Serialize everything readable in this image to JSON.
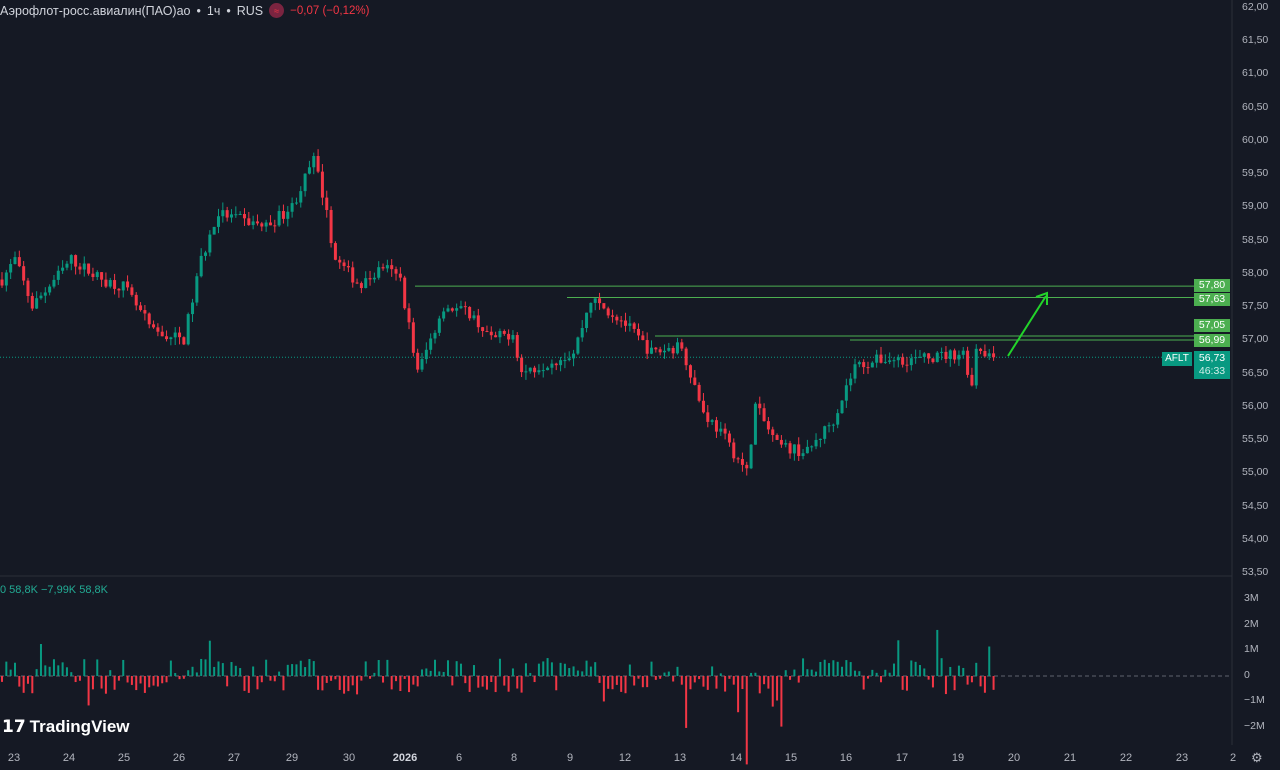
{
  "header": {
    "symbol": "Аэрофлот-росс.авиалин(ПАО)ао",
    "interval": "1ч",
    "exchange": "RUS",
    "change": "−0,07 (−0,12%)",
    "badge_icon": "currency-icon",
    "separator": "•"
  },
  "volume_legend": "0 58,8K −7,99K 58,8K",
  "logo": "TradingView",
  "price_axis": [
    "62,00",
    "61,50",
    "61,00",
    "60,50",
    "60,00",
    "59,50",
    "59,00",
    "58,50",
    "58,00",
    "57,50",
    "57,00",
    "56,50",
    "56,00",
    "55,50",
    "55,00",
    "54,50",
    "54,00",
    "53,50"
  ],
  "volume_axis": [
    "3M",
    "2M",
    "1M",
    "0",
    "−1M",
    "−2M"
  ],
  "time_axis": [
    "23",
    "24",
    "25",
    "26",
    "27",
    "29",
    "30",
    "2026",
    "6",
    "8",
    "9",
    "12",
    "13",
    "14",
    "15",
    "16",
    "17",
    "19",
    "20",
    "21",
    "22",
    "23",
    "2"
  ],
  "levels": [
    {
      "label": "57,80",
      "value": 57.8
    },
    {
      "label": "57,63",
      "value": 57.63
    },
    {
      "label": "57,05",
      "value": 57.05
    },
    {
      "label": "56,99",
      "value": 56.99
    }
  ],
  "current": {
    "ticker": "AFLT",
    "price": "56,73",
    "value": 56.73,
    "countdown": "46:33"
  },
  "colors": {
    "up": "#089981",
    "down": "#f23645",
    "level": "#4caf50",
    "arrow": "#22d42a",
    "bg": "#151924"
  },
  "chart_data": {
    "type": "candlestick",
    "title": "Аэрофлот-росс.авиалин(ПАО)ао · 1ч · RUS",
    "ylim": [
      53.5,
      62.0
    ],
    "volume_ylim": [
      -2.5,
      3.5
    ],
    "approx_close_path": [
      [
        0,
        57.9
      ],
      [
        3,
        58.2
      ],
      [
        7,
        57.5
      ],
      [
        16,
        58.2
      ],
      [
        23,
        57.9
      ],
      [
        28,
        57.8
      ],
      [
        35,
        57.1
      ],
      [
        42,
        57.0
      ],
      [
        46,
        58.2
      ],
      [
        50,
        58.9
      ],
      [
        55,
        58.8
      ],
      [
        61,
        58.7
      ],
      [
        67,
        59.0
      ],
      [
        72,
        59.7
      ],
      [
        74,
        59.2
      ],
      [
        77,
        58.2
      ],
      [
        83,
        57.8
      ],
      [
        88,
        58.1
      ],
      [
        92,
        57.9
      ],
      [
        94,
        57.2
      ],
      [
        96,
        56.5
      ],
      [
        102,
        57.5
      ],
      [
        108,
        57.4
      ],
      [
        113,
        57.0
      ],
      [
        118,
        57.1
      ],
      [
        120,
        56.5
      ],
      [
        132,
        56.8
      ],
      [
        136,
        57.6
      ],
      [
        143,
        57.3
      ],
      [
        150,
        56.8
      ],
      [
        157,
        56.9
      ],
      [
        162,
        55.9
      ],
      [
        166,
        55.6
      ],
      [
        172,
        55.0
      ],
      [
        174,
        56.0
      ],
      [
        179,
        55.4
      ],
      [
        186,
        55.3
      ],
      [
        192,
        55.8
      ],
      [
        197,
        56.6
      ],
      [
        203,
        56.7
      ],
      [
        212,
        56.7
      ],
      [
        222,
        56.8
      ],
      [
        224,
        56.3
      ],
      [
        225,
        56.9
      ],
      [
        229,
        56.73
      ]
    ]
  }
}
